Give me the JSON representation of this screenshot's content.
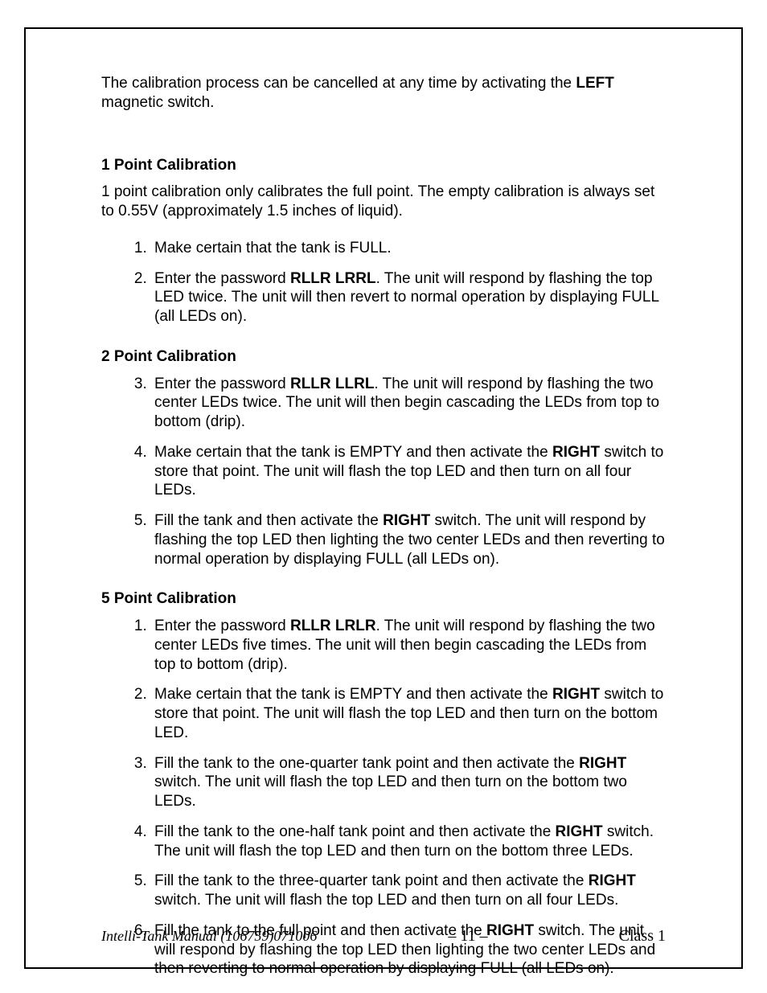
{
  "intro": {
    "part1": "The calibration process can be cancelled at any time by activating the ",
    "bold": "LEFT",
    "part2": " magnetic switch."
  },
  "section1": {
    "heading": "1 Point Calibration",
    "para": "1 point calibration only calibrates the full point.  The empty calibration is always set to 0.55V (approximately 1.5 inches of liquid).",
    "items": [
      {
        "t1": "Make certain that the tank is FULL."
      },
      {
        "t1": "Enter the password ",
        "b1": "RLLR LRRL",
        "t2": ".  The unit will respond by flashing the top LED twice.  The unit will then revert to normal operation by displaying FULL (all LEDs on)."
      }
    ]
  },
  "section2": {
    "heading": "2 Point Calibration",
    "start": 3,
    "items": [
      {
        "t1": "Enter the password ",
        "b1": "RLLR LLRL",
        "t2": ".  The unit will respond by flashing the two center LEDs twice.  The unit will then begin cascading the LEDs from top to bottom (drip)."
      },
      {
        "t1": "Make certain that the tank is EMPTY and then activate the ",
        "b1": "RIGHT",
        "t2": " switch to store that point.  The unit will flash the top LED and then turn on all four LEDs."
      },
      {
        "t1": "Fill the tank and then activate the ",
        "b1": "RIGHT",
        "t2": " switch. The unit will respond by flashing the top LED then lighting the two center LEDs and then reverting to normal operation by displaying FULL (all LEDs on)."
      }
    ]
  },
  "section3": {
    "heading": "5 Point Calibration",
    "start": 1,
    "items": [
      {
        "t1": "Enter the password ",
        "b1": "RLLR LRLR",
        "t2": ".  The unit will respond by flashing the two center LEDs five times.  The unit will then begin cascading the LEDs from top to bottom (drip)."
      },
      {
        "t1": "Make certain that the tank is EMPTY and then activate the ",
        "b1": "RIGHT",
        "t2": " switch to store that point.  The unit will flash the top LED and then turn on the bottom LED."
      },
      {
        "t1": "Fill the tank to the one-quarter tank point and then activate the ",
        "b1": "RIGHT",
        "t2": " switch. The unit will flash the top LED and then turn on the bottom two LEDs."
      },
      {
        "t1": "Fill the tank to the one-half tank point and then activate the ",
        "b1": "RIGHT",
        "t2": " switch. The unit will flash the top LED and then turn on the bottom three LEDs."
      },
      {
        "t1": "Fill the tank to the three-quarter tank point and then activate the ",
        "b1": "RIGHT",
        "t2": " switch. The unit will flash the top LED and then turn on all four LEDs."
      },
      {
        "t1": "Fill the tank to the full point and then activate the ",
        "b1": "RIGHT",
        "t2": " switch. The unit will respond by flashing the top LED then lighting the two center LEDs and then reverting to normal operation by displaying FULL (all LEDs on)."
      }
    ]
  },
  "footer": {
    "left": "Intelli-Tank Manual (106759)071006",
    "center": "– 11 –",
    "right": "Class 1"
  }
}
